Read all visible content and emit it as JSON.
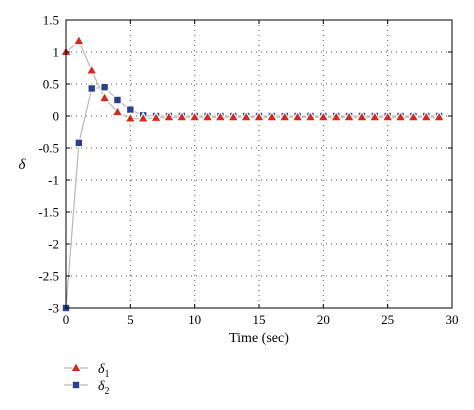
{
  "chart_data": {
    "type": "line",
    "title": "",
    "xlabel": "Time (sec)",
    "ylabel": "δ",
    "xlim": [
      0,
      30
    ],
    "ylim": [
      -3,
      1.5
    ],
    "xticks": [
      0,
      5,
      10,
      15,
      20,
      25,
      30
    ],
    "yticks": [
      -3,
      -2.5,
      -2,
      -1.5,
      -1,
      -0.5,
      0,
      0.5,
      1,
      1.5
    ],
    "grid": true,
    "legend_position": "bottom-left",
    "line_color": "#b8b8b8",
    "series": [
      {
        "name": "δ1",
        "legend_base": "δ",
        "legend_sub": "1",
        "marker": "triangle",
        "marker_color": "#d42a1c",
        "x": [
          0,
          1,
          2,
          3,
          4,
          5,
          6,
          7,
          8,
          9,
          10,
          11,
          12,
          13,
          14,
          15,
          16,
          17,
          18,
          19,
          20,
          21,
          22,
          23,
          24,
          25,
          26,
          27,
          28,
          29
        ],
        "y": [
          1.0,
          1.17,
          0.71,
          0.28,
          0.06,
          -0.04,
          -0.04,
          -0.03,
          -0.02,
          -0.02,
          -0.02,
          -0.02,
          -0.02,
          -0.02,
          -0.02,
          -0.02,
          -0.02,
          -0.02,
          -0.02,
          -0.02,
          -0.02,
          -0.02,
          -0.02,
          -0.02,
          -0.02,
          -0.02,
          -0.02,
          -0.02,
          -0.02,
          -0.02
        ]
      },
      {
        "name": "δ2",
        "legend_base": "δ",
        "legend_sub": "2",
        "marker": "square",
        "marker_color": "#2a3f8f",
        "x": [
          0,
          1,
          2,
          3,
          4,
          5,
          6,
          7,
          8,
          9,
          10,
          11,
          12,
          13,
          14,
          15,
          16,
          17,
          18,
          19,
          20,
          21,
          22,
          23,
          24,
          25,
          26,
          27,
          28,
          29
        ],
        "y": [
          -3.0,
          -0.42,
          0.43,
          0.45,
          0.25,
          0.1,
          0.01,
          0.0,
          0.0,
          0.0,
          0.0,
          0.0,
          0.0,
          0.0,
          0.0,
          0.0,
          0.0,
          0.0,
          0.0,
          0.0,
          0.0,
          0.0,
          0.0,
          0.0,
          0.0,
          0.0,
          0.0,
          0.0,
          0.0,
          0.0
        ]
      }
    ]
  }
}
